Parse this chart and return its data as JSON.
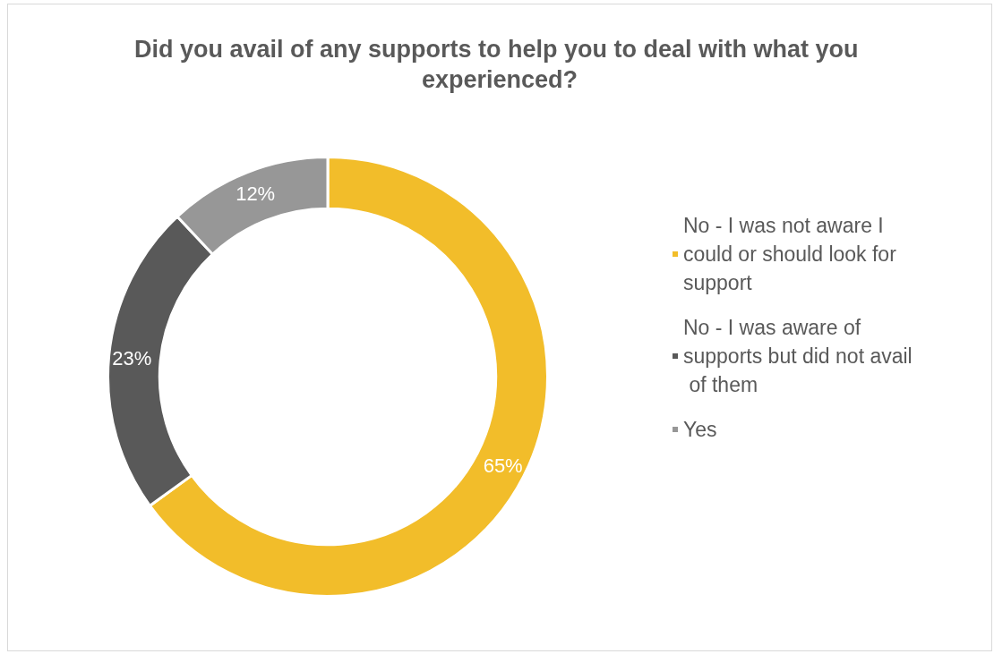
{
  "chart_data": {
    "type": "donut",
    "title": "Did you avail of any supports to help you to deal with what you experienced?",
    "categories": [
      "No - I was not aware I could or should look for support",
      "No - I was aware of supports but did not avail of them",
      "Yes"
    ],
    "values": [
      65,
      23,
      12
    ],
    "colors": [
      "#f2bd2a",
      "#595959",
      "#979797"
    ],
    "value_labels": [
      "65%",
      "23%",
      "12%"
    ],
    "legend": "right"
  }
}
